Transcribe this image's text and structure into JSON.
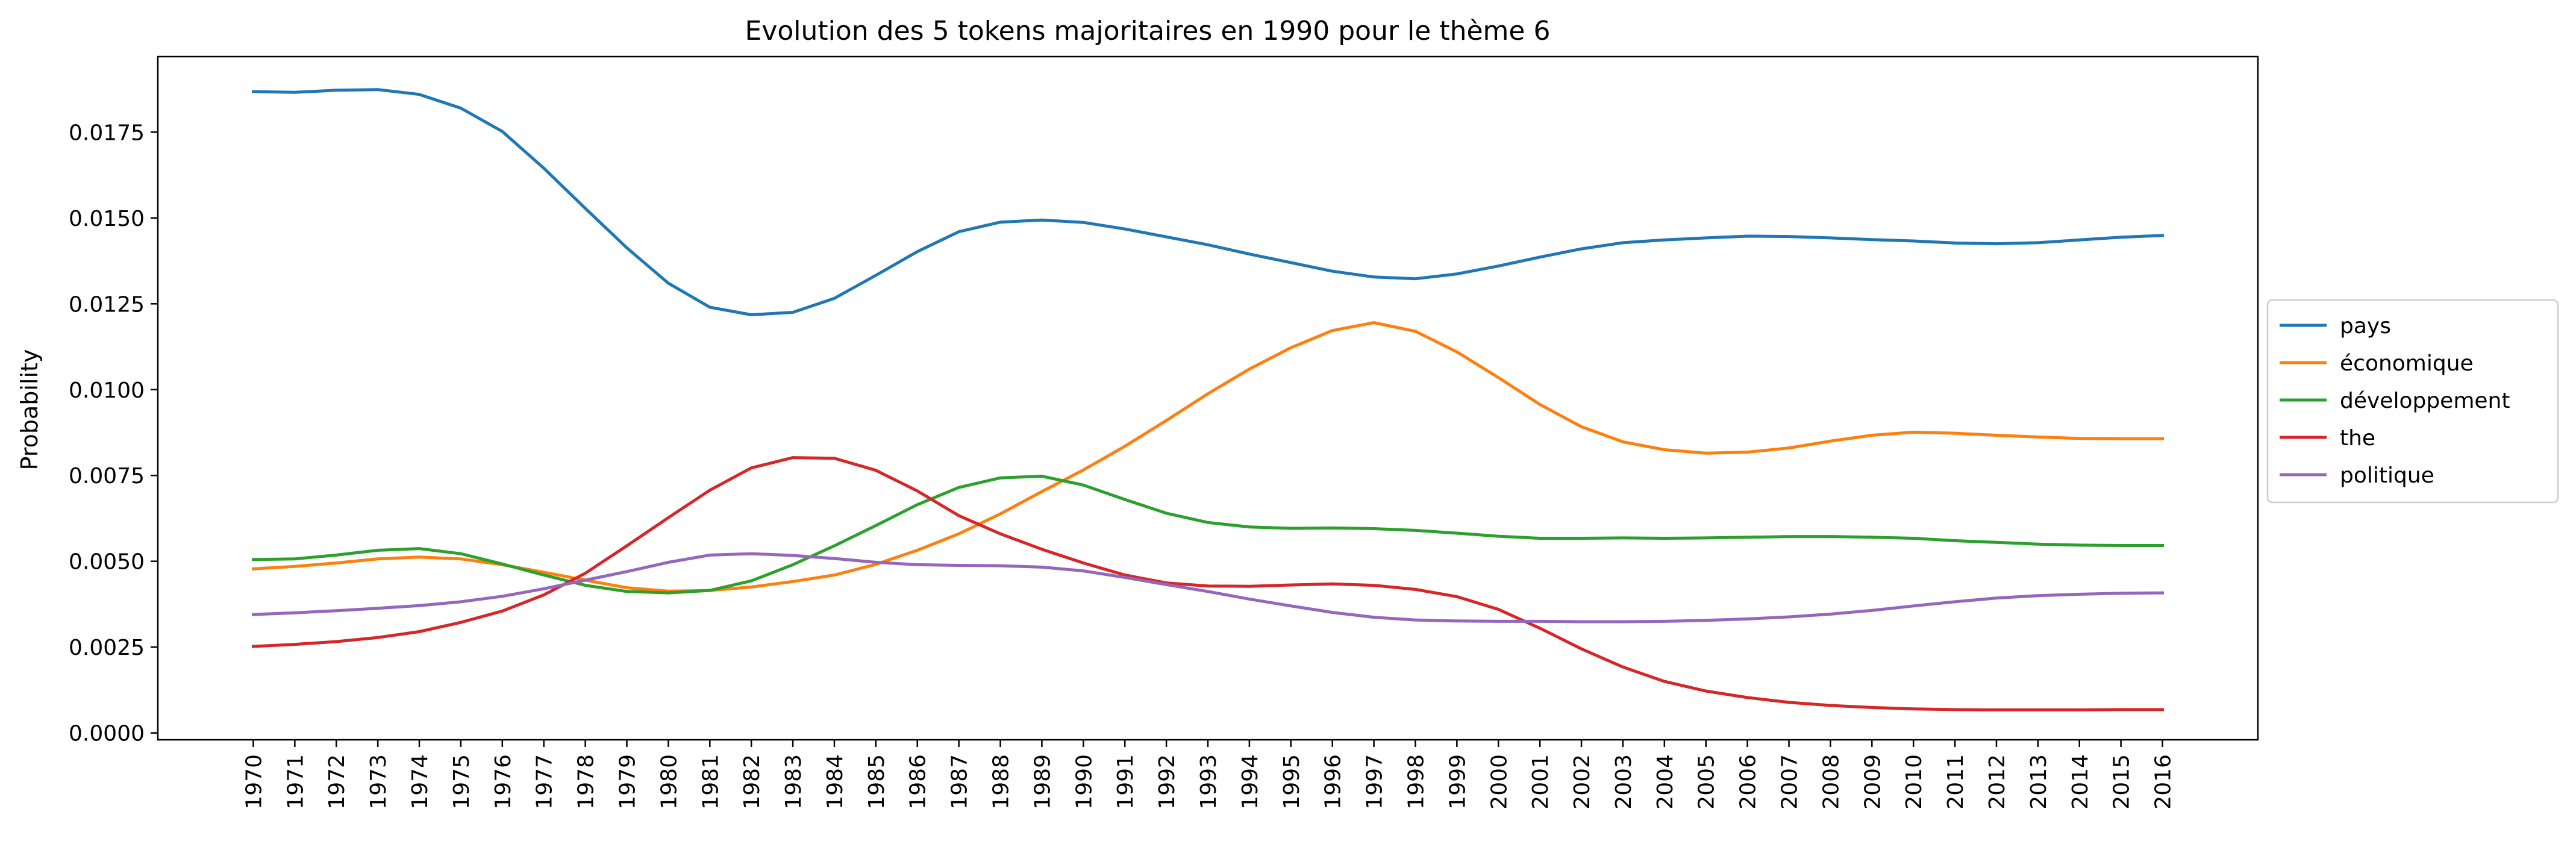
{
  "chart_data": {
    "type": "line",
    "title": "Evolution des 5 tokens majoritaires en 1990 pour le thème 6",
    "xlabel": "",
    "ylabel": "Probability",
    "x": [
      1970,
      1971,
      1972,
      1973,
      1974,
      1975,
      1976,
      1977,
      1978,
      1979,
      1980,
      1981,
      1982,
      1983,
      1984,
      1985,
      1986,
      1987,
      1988,
      1989,
      1990,
      1991,
      1992,
      1993,
      1994,
      1995,
      1996,
      1997,
      1998,
      1999,
      2000,
      2001,
      2002,
      2003,
      2004,
      2005,
      2006,
      2007,
      2008,
      2009,
      2010,
      2011,
      2012,
      2013,
      2014,
      2015,
      2016
    ],
    "ylim": [
      -0.0002,
      0.0197
    ],
    "yticks": [
      "0.0000",
      "0.0025",
      "0.0050",
      "0.0075",
      "0.0100",
      "0.0125",
      "0.0150",
      "0.0175"
    ],
    "legend_position": "right",
    "grid": false,
    "series": [
      {
        "name": "pays",
        "color": "#1f77b4",
        "values": [
          0.01868,
          0.01866,
          0.01872,
          0.01874,
          0.0186,
          0.0182,
          0.01752,
          0.01645,
          0.01528,
          0.01413,
          0.0131,
          0.0124,
          0.01218,
          0.01225,
          0.01266,
          0.01333,
          0.01402,
          0.0146,
          0.01488,
          0.01494,
          0.01487,
          0.01468,
          0.01445,
          0.01422,
          0.01395,
          0.0137,
          0.01345,
          0.01328,
          0.01323,
          0.01337,
          0.0136,
          0.01386,
          0.0141,
          0.01428,
          0.01436,
          0.01442,
          0.01447,
          0.01446,
          0.01442,
          0.01437,
          0.01433,
          0.01427,
          0.01425,
          0.01428,
          0.01436,
          0.01444,
          0.01449
        ]
      },
      {
        "name": "économique",
        "color": "#ff7f0e",
        "values": [
          0.00478,
          0.00485,
          0.00495,
          0.00507,
          0.00512,
          0.00507,
          0.0049,
          0.00468,
          0.00445,
          0.00423,
          0.00413,
          0.00415,
          0.00425,
          0.00441,
          0.0046,
          0.00491,
          0.00532,
          0.0058,
          0.00638,
          0.00703,
          0.00766,
          0.00835,
          0.0091,
          0.00988,
          0.0106,
          0.01122,
          0.01172,
          0.01195,
          0.0117,
          0.0111,
          0.01035,
          0.00957,
          0.00892,
          0.00848,
          0.00825,
          0.00815,
          0.00818,
          0.0083,
          0.0085,
          0.00867,
          0.00876,
          0.00873,
          0.00867,
          0.00862,
          0.00858,
          0.00857,
          0.00857
        ]
      },
      {
        "name": "développement",
        "color": "#2ca02c",
        "values": [
          0.00505,
          0.00507,
          0.00518,
          0.00532,
          0.00537,
          0.00522,
          0.00492,
          0.0046,
          0.0043,
          0.00412,
          0.00408,
          0.00415,
          0.00443,
          0.0049,
          0.00545,
          0.00604,
          0.00665,
          0.00715,
          0.00743,
          0.00748,
          0.00722,
          0.0068,
          0.0064,
          0.00613,
          0.006,
          0.00596,
          0.00597,
          0.00595,
          0.0059,
          0.00582,
          0.00573,
          0.00567,
          0.00567,
          0.00568,
          0.00567,
          0.00568,
          0.0057,
          0.00572,
          0.00572,
          0.0057,
          0.00567,
          0.0056,
          0.00555,
          0.0055,
          0.00547,
          0.00546,
          0.00546
        ]
      },
      {
        "name": "the",
        "color": "#d62728",
        "values": [
          0.00252,
          0.00258,
          0.00266,
          0.00278,
          0.00295,
          0.00322,
          0.00355,
          0.00402,
          0.00465,
          0.00545,
          0.00627,
          0.00707,
          0.00772,
          0.00802,
          0.008,
          0.00765,
          0.00705,
          0.00633,
          0.0058,
          0.00535,
          0.00495,
          0.0046,
          0.00437,
          0.00428,
          0.00427,
          0.00431,
          0.00434,
          0.0043,
          0.00418,
          0.00397,
          0.0036,
          0.00305,
          0.00245,
          0.00192,
          0.0015,
          0.00122,
          0.00103,
          0.00089,
          0.0008,
          0.00074,
          0.0007,
          0.00068,
          0.00067,
          0.00067,
          0.00067,
          0.00068,
          0.00068
        ]
      },
      {
        "name": "politique",
        "color": "#9467bd",
        "values": [
          0.00345,
          0.0035,
          0.00356,
          0.00363,
          0.00371,
          0.00382,
          0.00398,
          0.0042,
          0.00445,
          0.0047,
          0.00497,
          0.00518,
          0.00522,
          0.00517,
          0.00508,
          0.00497,
          0.0049,
          0.00488,
          0.00487,
          0.00483,
          0.00472,
          0.00453,
          0.00432,
          0.00412,
          0.0039,
          0.0037,
          0.00351,
          0.00337,
          0.00329,
          0.00326,
          0.00325,
          0.00325,
          0.00324,
          0.00324,
          0.00325,
          0.00328,
          0.00332,
          0.00338,
          0.00346,
          0.00357,
          0.0037,
          0.00382,
          0.00393,
          0.004,
          0.00404,
          0.00407,
          0.00408
        ]
      }
    ]
  }
}
